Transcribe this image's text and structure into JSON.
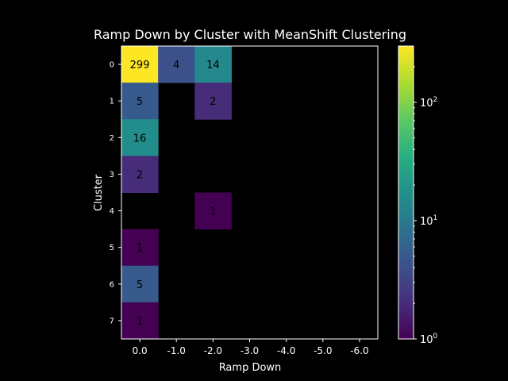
{
  "chart_data": {
    "type": "heatmap",
    "title": "Ramp Down by Cluster with MeanShift Clustering",
    "xlabel": "Ramp Down",
    "ylabel": "Cluster",
    "x_categories": [
      "0.0",
      "-1.0",
      "-2.0",
      "-3.0",
      "-4.0",
      "-5.0",
      "-6.0"
    ],
    "y_categories": [
      "0",
      "1",
      "2",
      "3",
      "4",
      "5",
      "6",
      "7"
    ],
    "cells": [
      {
        "row": 0,
        "col": 0,
        "value": 299
      },
      {
        "row": 0,
        "col": 1,
        "value": 4
      },
      {
        "row": 0,
        "col": 2,
        "value": 14
      },
      {
        "row": 1,
        "col": 0,
        "value": 5
      },
      {
        "row": 1,
        "col": 2,
        "value": 2
      },
      {
        "row": 2,
        "col": 0,
        "value": 16
      },
      {
        "row": 3,
        "col": 0,
        "value": 2
      },
      {
        "row": 4,
        "col": 2,
        "value": 1
      },
      {
        "row": 5,
        "col": 0,
        "value": 1
      },
      {
        "row": 6,
        "col": 0,
        "value": 5
      },
      {
        "row": 7,
        "col": 0,
        "value": 1
      }
    ],
    "colormap": "viridis",
    "color_scale": "log",
    "color_range": [
      1,
      299
    ],
    "colorbar_ticks": [
      {
        "value": 1,
        "base": "10",
        "exp": "0"
      },
      {
        "value": 10,
        "base": "10",
        "exp": "1"
      },
      {
        "value": 100,
        "base": "10",
        "exp": "2"
      }
    ],
    "empty_cell_color": "#000000"
  }
}
